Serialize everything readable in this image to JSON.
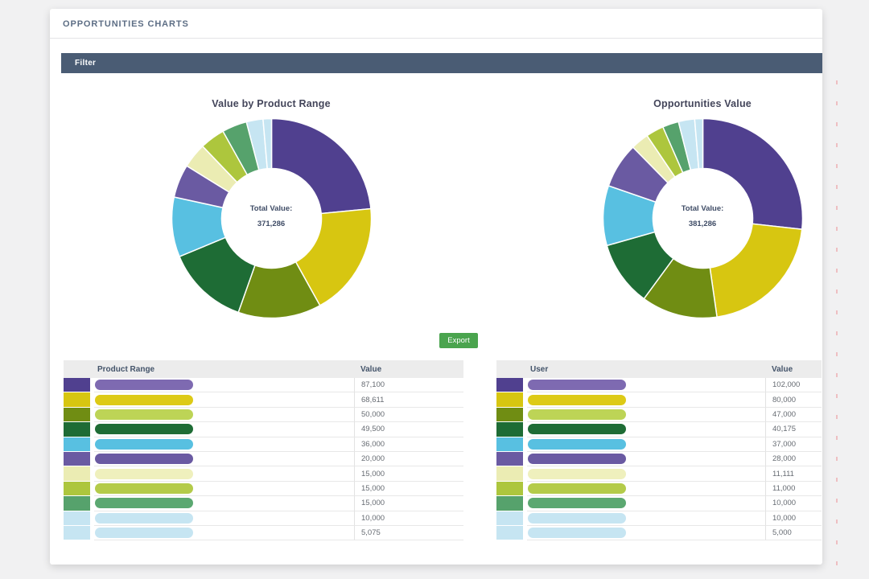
{
  "page": {
    "title": "OPPORTUNITIES CHARTS",
    "filter": {
      "label": "Filter"
    },
    "export_button": {
      "label": "Export"
    }
  },
  "colors": {
    "page_bg": "#f1f1f2",
    "card_bg": "#ffffff",
    "filter_bar_bg": "#4a5c74",
    "filter_text": "#ffffff",
    "header_text": "#5d6e85",
    "title_text": "#43455a",
    "center_text": "#3f4c66",
    "export_bg": "#4aa44e",
    "table_header_bg": "#ececec",
    "table_header_text": "#44546a",
    "value_text": "#666b72",
    "row_border": "#e8e8e8",
    "marker_dash": "#edb6ba",
    "palette_swatch": [
      "#50408f",
      "#d7c611",
      "#708d13",
      "#1e6c35",
      "#58c0e1",
      "#6a5aa2",
      "#ebecb3",
      "#adc63d",
      "#56a26c",
      "#c6e5f2",
      "#c6e5f2"
    ],
    "palette_pill": [
      "#7e6ab1",
      "#ddca16",
      "#bdd456",
      "#1e6c35",
      "#58c0e1",
      "#6a5aa2",
      "#eff0bd",
      "#b4cb4a",
      "#5ba871",
      "#c6e5f2",
      "#c6e5f2"
    ]
  },
  "chart_data": [
    {
      "type": "pie",
      "variant": "donut",
      "title": "Value by Product Range",
      "center_label": "Total Value:",
      "total_display": "371,286",
      "total": 371286,
      "values": [
        87100,
        68611,
        50000,
        49500,
        36000,
        20000,
        15000,
        15000,
        15000,
        10000,
        5075
      ],
      "colors": [
        "#50408f",
        "#d7c611",
        "#708d13",
        "#1e6c35",
        "#58c0e1",
        "#6a5aa2",
        "#ebecb3",
        "#adc63d",
        "#56a26c",
        "#c6e5f2",
        "#c6e5f2"
      ],
      "legend_position": "none",
      "start_angle_deg": 0,
      "direction": "clockwise",
      "labels": "redacted"
    },
    {
      "type": "pie",
      "variant": "donut",
      "title": "Opportunities Value",
      "center_label": "Total Value:",
      "total_display": "381,286",
      "total": 381286,
      "values": [
        102000,
        80000,
        47000,
        40175,
        37000,
        28000,
        11111,
        11000,
        10000,
        10000,
        5000
      ],
      "colors": [
        "#50408f",
        "#d7c611",
        "#708d13",
        "#1e6c35",
        "#58c0e1",
        "#6a5aa2",
        "#ebecb3",
        "#adc63d",
        "#56a26c",
        "#c6e5f2",
        "#c6e5f2"
      ],
      "legend_position": "none",
      "start_angle_deg": 0,
      "direction": "clockwise",
      "labels": "redacted"
    }
  ],
  "tables": [
    {
      "name_header": "Product Range",
      "value_header": "Value",
      "rows": [
        {
          "value": "87,100"
        },
        {
          "value": "68,611"
        },
        {
          "value": "50,000"
        },
        {
          "value": "49,500"
        },
        {
          "value": "36,000"
        },
        {
          "value": "20,000"
        },
        {
          "value": "15,000"
        },
        {
          "value": "15,000"
        },
        {
          "value": "15,000"
        },
        {
          "value": "10,000"
        },
        {
          "value": "5,075"
        }
      ]
    },
    {
      "name_header": "User",
      "value_header": "Value",
      "rows": [
        {
          "value": "102,000"
        },
        {
          "value": "80,000"
        },
        {
          "value": "47,000"
        },
        {
          "value": "40,175"
        },
        {
          "value": "37,000"
        },
        {
          "value": "28,000"
        },
        {
          "value": "11,111"
        },
        {
          "value": "11,000"
        },
        {
          "value": "10,000"
        },
        {
          "value": "10,000"
        },
        {
          "value": "5,000"
        }
      ]
    }
  ]
}
